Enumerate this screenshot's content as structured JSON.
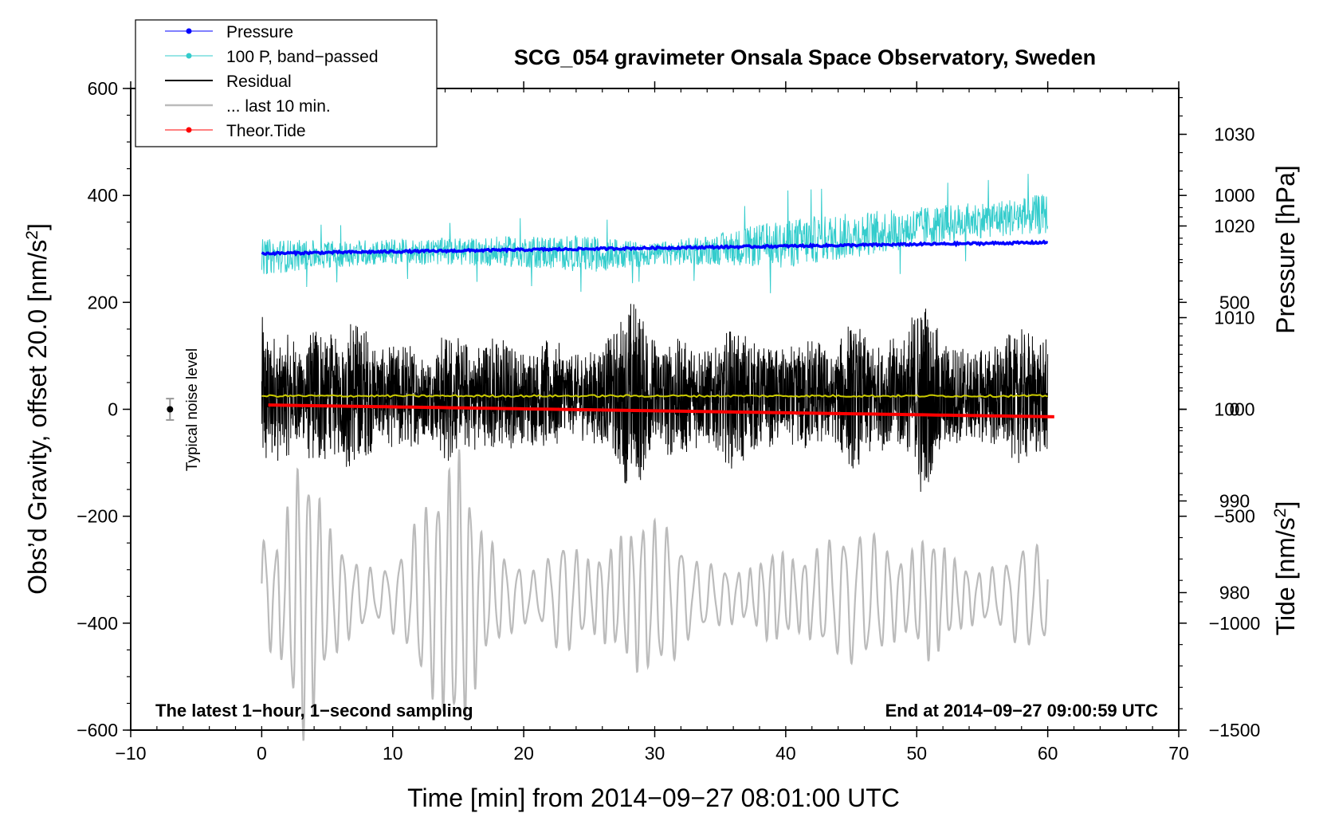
{
  "chart_data": {
    "type": "line",
    "title": "SCG_054 gravimeter Onsala Space Observatory, Sweden",
    "xlabel": "Time [min] from 2014−09−27 08:01:00 UTC",
    "ylabel_left_main": "Obs’d Gravity, offset 20.0 [nm/s",
    "ylabel_left_tail": "]",
    "ylabel_right_pressure": "Pressure [hPa]",
    "ylabel_right_tide_main": "Tide [nm/s",
    "ylabel_right_tide_tail": "]",
    "unit_superscript": "2",
    "xlim": [
      -10,
      70
    ],
    "ylim": [
      -600,
      600
    ],
    "pressure_axis_range": [
      965,
      1035
    ],
    "tide_axis_range": [
      -1500,
      1500
    ],
    "x_ticks": [
      "−10",
      "0",
      "10",
      "20",
      "30",
      "40",
      "50",
      "60",
      "70"
    ],
    "x_tick_values": [
      -10,
      0,
      10,
      20,
      30,
      40,
      50,
      60,
      70
    ],
    "y_ticks": [
      "600",
      "400",
      "200",
      "0",
      "−200",
      "−400",
      "−600"
    ],
    "y_tick_values": [
      600,
      400,
      200,
      0,
      -200,
      -400,
      -600
    ],
    "pressure_ticks": [
      "1030",
      "1020",
      "1010",
      "1000",
      "990",
      "980"
    ],
    "pressure_tick_values": [
      1030,
      1020,
      1010,
      1000,
      990,
      980
    ],
    "tide_ticks": [
      "1000",
      "500",
      "0",
      "−500",
      "−1000",
      "−1500"
    ],
    "tide_tick_values": [
      1000,
      500,
      0,
      -500,
      -1000,
      -1500
    ],
    "legend_position": "top-left",
    "legend": [
      {
        "label": "Pressure",
        "color": "#0000ff",
        "marker": true
      },
      {
        "label": "100 P, band−passed",
        "color": "#33cccc",
        "marker": true
      },
      {
        "label": "Residual",
        "color": "#000000",
        "marker": false
      },
      {
        "label": "... last 10 min.",
        "color": "#bbbbbb",
        "marker": false
      },
      {
        "label": "Theor.Tide",
        "color": "#ff0000",
        "marker": true
      }
    ],
    "annotations": {
      "noise_label": "Typical noise level",
      "bottom_left": "The latest 1−hour, 1−second sampling",
      "bottom_right": "End at 2014−09−27 09:00:59 UTC"
    },
    "noise_bar": {
      "x": -7,
      "y": 0,
      "halfwidth": 20
    },
    "series": [
      {
        "name": "Pressure",
        "color": "#0000ff",
        "axis": "pressure",
        "x_range": [
          0,
          60
        ],
        "start": 1017.0,
        "end": 1018.2,
        "noise": 0.12
      },
      {
        "name": "100 P, band−passed",
        "color": "#33cccc",
        "axis": "left",
        "x_range": [
          0,
          60
        ],
        "envelope_x": [
          0,
          5,
          10,
          15,
          20,
          25,
          30,
          35,
          40,
          45,
          50,
          55,
          60
        ],
        "center": [
          285,
          290,
          295,
          295,
          295,
          290,
          290,
          300,
          310,
          325,
          340,
          355,
          365
        ],
        "amplitude": [
          40,
          30,
          28,
          30,
          35,
          40,
          25,
          35,
          55,
          50,
          45,
          40,
          45
        ]
      },
      {
        "name": "Residual",
        "color": "#000000",
        "axis": "left",
        "x_range": [
          0,
          60
        ],
        "envelope_x": [
          0,
          1,
          3,
          4,
          6,
          7,
          9,
          11,
          13,
          14,
          16,
          18,
          20,
          22,
          24,
          26,
          27,
          28.5,
          30,
          32,
          34,
          36,
          38,
          40,
          42,
          43.5,
          45,
          47,
          49,
          50.5,
          52,
          54,
          56,
          58,
          60
        ],
        "amplitude": [
          160,
          130,
          100,
          150,
          110,
          170,
          90,
          110,
          80,
          130,
          100,
          120,
          90,
          110,
          80,
          100,
          130,
          200,
          110,
          120,
          90,
          140,
          100,
          90,
          120,
          80,
          150,
          100,
          120,
          200,
          110,
          90,
          100,
          130,
          110
        ]
      },
      {
        "name": "Mean",
        "color": "#cccc00",
        "axis": "left",
        "x_range": [
          0,
          60
        ],
        "value": 25,
        "noise": 2
      },
      {
        "name": "... last 10 min.",
        "color": "#bbbbbb",
        "axis": "left",
        "x_range": [
          0,
          60
        ],
        "center": -350,
        "envelope_x": [
          0,
          1,
          2,
          3,
          4,
          5,
          7,
          9,
          11,
          12,
          14,
          15,
          17,
          19,
          21,
          23,
          25,
          27,
          29,
          31,
          33,
          35,
          37,
          39,
          41,
          43,
          45,
          47,
          49,
          51,
          53,
          55,
          57,
          58,
          60
        ],
        "amplitude": [
          110,
          80,
          150,
          250,
          200,
          120,
          60,
          40,
          80,
          140,
          200,
          250,
          100,
          60,
          40,
          100,
          60,
          90,
          130,
          120,
          60,
          50,
          40,
          80,
          60,
          90,
          110,
          100,
          60,
          110,
          60,
          40,
          60,
          90,
          80
        ]
      },
      {
        "name": "Theor.Tide",
        "color": "#ff0000",
        "axis": "tide",
        "x_range": [
          0.5,
          60.5
        ],
        "start": 20,
        "end": -35
      }
    ]
  }
}
